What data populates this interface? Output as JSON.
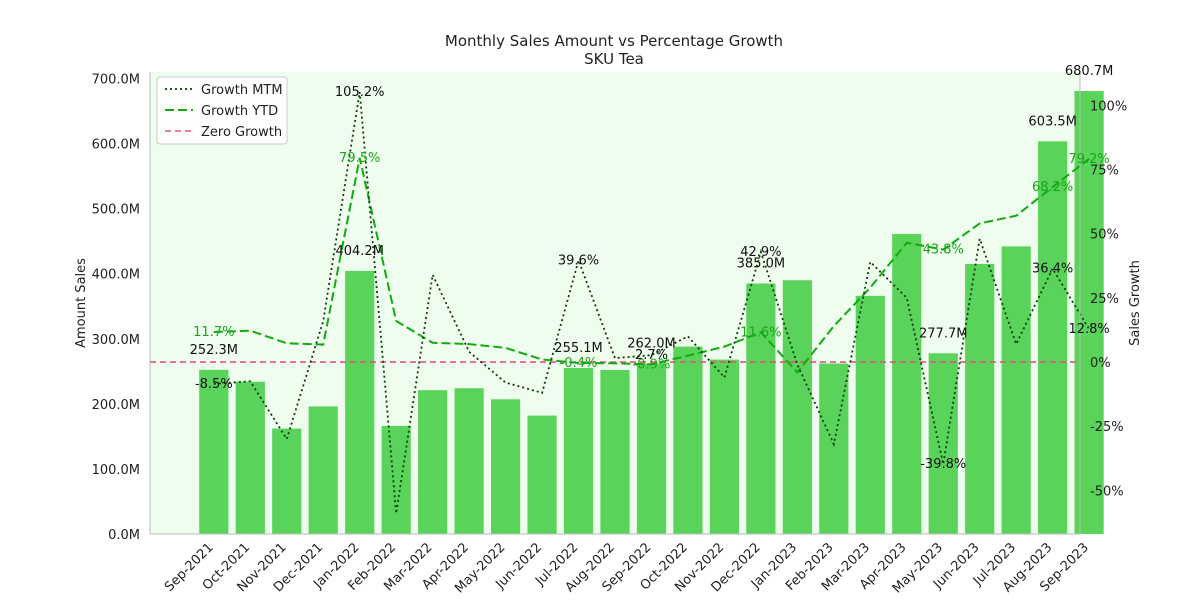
{
  "chart_data": {
    "type": "bar",
    "title": "Monthly Sales Amount vs Percentage Growth",
    "subtitle": "SKU Tea",
    "ylabel": "Amount Sales",
    "y2label": "Sales Growth",
    "ylim": [
      0,
      710
    ],
    "y2lim": [
      -67,
      113
    ],
    "yticks": [
      "0.0M",
      "100.0M",
      "200.0M",
      "300.0M",
      "400.0M",
      "500.0M",
      "600.0M",
      "700.0M"
    ],
    "yticks_values": [
      0,
      100,
      200,
      300,
      400,
      500,
      600,
      700
    ],
    "y2ticks": [
      "-50%",
      "-25%",
      "0%",
      "25%",
      "50%",
      "75%",
      "100%"
    ],
    "y2ticks_values": [
      -50,
      -25,
      0,
      25,
      50,
      75,
      100
    ],
    "categories": [
      "Sep-2021",
      "Oct-2021",
      "Nov-2021",
      "Dec-2021",
      "Jan-2022",
      "Feb-2022",
      "Mar-2022",
      "Apr-2022",
      "May-2022",
      "Jun-2022",
      "Jul-2022",
      "Aug-2022",
      "Sep-2022",
      "Oct-2022",
      "Nov-2022",
      "Dec-2022",
      "Jan-2023",
      "Feb-2023",
      "Mar-2023",
      "Apr-2023",
      "May-2023",
      "Jun-2023",
      "Jul-2023",
      "Aug-2023",
      "Sep-2023"
    ],
    "series": [
      {
        "name": "Amount Sales",
        "kind": "bar",
        "color": "#59d359",
        "values": [
          252.3,
          234,
          162,
          196,
          404.2,
          166,
          221,
          224,
          207,
          182,
          255.1,
          252,
          262.0,
          288,
          268,
          385.0,
          390,
          262,
          366,
          461,
          277.7,
          415,
          442,
          603.5,
          680.7
        ]
      },
      {
        "name": "Growth MTM",
        "kind": "line",
        "style": "dotted",
        "color": "#0c3d0c",
        "values": [
          -8.5,
          -7.5,
          -30,
          16,
          105.2,
          -59,
          34,
          4,
          -8,
          -12,
          39.6,
          1.5,
          2.7,
          10,
          -6,
          42.9,
          -1,
          -32,
          39,
          25,
          -39.8,
          48,
          7,
          36.4,
          12.8
        ]
      },
      {
        "name": "Growth YTD",
        "kind": "line",
        "style": "dashed",
        "color": "#11aa11",
        "values": [
          11.7,
          12.2,
          7.3,
          6.8,
          79.5,
          16,
          7.5,
          7,
          5.5,
          1,
          -0.4,
          -0.5,
          -0.9,
          2.5,
          6,
          11.6,
          -4,
          14,
          29,
          46.5,
          43.8,
          54,
          57,
          68.2,
          79.2
        ]
      },
      {
        "name": "Zero Growth",
        "kind": "hline",
        "style": "dashed",
        "color": "#e05580",
        "value": 0
      }
    ],
    "bar_labels": [
      {
        "index": 0,
        "text": "252.3M"
      },
      {
        "index": 4,
        "text": "404.2M"
      },
      {
        "index": 10,
        "text": "255.1M"
      },
      {
        "index": 12,
        "text": "262.0M"
      },
      {
        "index": 15,
        "text": "385.0M"
      },
      {
        "index": 20,
        "text": "277.7M"
      },
      {
        "index": 23,
        "text": "603.5M"
      },
      {
        "index": 24,
        "text": "680.7M"
      }
    ],
    "mtm_labels": [
      {
        "index": 0,
        "text": "-8.5%"
      },
      {
        "index": 4,
        "text": "105.2%"
      },
      {
        "index": 10,
        "text": "39.6%"
      },
      {
        "index": 12,
        "text": "2.7%"
      },
      {
        "index": 15,
        "text": "42.9%"
      },
      {
        "index": 20,
        "text": "-39.8%"
      },
      {
        "index": 23,
        "text": "36.4%"
      },
      {
        "index": 24,
        "text": "12.8%"
      }
    ],
    "ytd_labels": [
      {
        "index": 0,
        "text": "11.7%"
      },
      {
        "index": 4,
        "text": "79.5%"
      },
      {
        "index": 10,
        "text": "-0.4%"
      },
      {
        "index": 12,
        "text": "-0.9%"
      },
      {
        "index": 15,
        "text": "11.6%"
      },
      {
        "index": 20,
        "text": "43.8%"
      },
      {
        "index": 23,
        "text": "68.2%"
      },
      {
        "index": 24,
        "text": "79.2%"
      }
    ],
    "legend_position": "upper-left",
    "plot_background": "#effdee",
    "grid": false
  }
}
